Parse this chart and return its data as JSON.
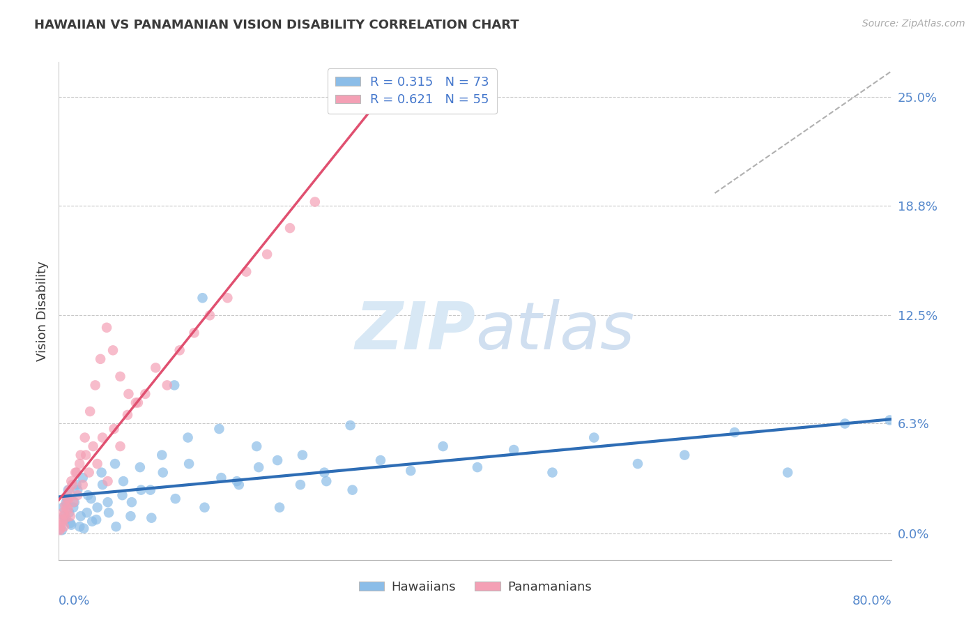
{
  "title": "HAWAIIAN VS PANAMANIAN VISION DISABILITY CORRELATION CHART",
  "source": "Source: ZipAtlas.com",
  "ylabel": "Vision Disability",
  "ytick_values": [
    0.0,
    6.3,
    12.5,
    18.8,
    25.0
  ],
  "xlim": [
    0.0,
    80.0
  ],
  "ylim": [
    -1.5,
    27.0
  ],
  "hawaiian_R": 0.315,
  "hawaiian_N": 73,
  "panamanian_R": 0.621,
  "panamanian_N": 55,
  "hawaiian_color": "#8bbde8",
  "panamanian_color": "#f4a0b5",
  "hawaiian_line_color": "#2e6db5",
  "panamanian_line_color": "#e05070",
  "watermark_zip_color": "#d8e8f5",
  "watermark_atlas_color": "#d0dff0",
  "background_color": "#ffffff",
  "grid_color": "#c8c8c8",
  "title_color": "#3a3a3a",
  "source_color": "#aaaaaa",
  "axis_label_color": "#5588cc",
  "legend_label_color": "#4477cc",
  "hawaiian_x": [
    0.4,
    0.6,
    0.8,
    1.0,
    1.2,
    1.5,
    1.8,
    2.1,
    2.4,
    2.8,
    3.2,
    3.7,
    4.2,
    4.8,
    5.5,
    6.2,
    7.0,
    7.9,
    8.9,
    10.0,
    11.2,
    12.5,
    14.0,
    15.6,
    17.3,
    19.2,
    21.2,
    23.4,
    25.7,
    28.2,
    30.9,
    33.8,
    36.9,
    40.2,
    43.7,
    47.4,
    51.4,
    55.6,
    60.1,
    64.9,
    70.0,
    75.5,
    79.8,
    0.3,
    0.5,
    0.7,
    0.9,
    1.1,
    1.4,
    1.7,
    2.0,
    2.3,
    2.7,
    3.1,
    3.6,
    4.1,
    4.7,
    5.4,
    6.1,
    6.9,
    7.8,
    8.8,
    9.9,
    11.1,
    12.4,
    13.8,
    15.4,
    17.1,
    19.0,
    21.0,
    23.2,
    25.5,
    28.0
  ],
  "hawaiian_y": [
    1.5,
    0.8,
    2.0,
    1.2,
    0.5,
    1.8,
    2.5,
    1.0,
    0.3,
    2.2,
    0.7,
    1.5,
    2.8,
    1.2,
    0.4,
    3.0,
    1.8,
    2.5,
    0.9,
    3.5,
    2.0,
    4.0,
    1.5,
    3.2,
    2.8,
    3.8,
    1.5,
    4.5,
    3.0,
    2.5,
    4.2,
    3.6,
    5.0,
    3.8,
    4.8,
    3.5,
    5.5,
    4.0,
    4.5,
    5.8,
    3.5,
    6.3,
    6.5,
    0.2,
    1.0,
    1.8,
    2.5,
    0.6,
    1.5,
    2.8,
    0.4,
    3.2,
    1.2,
    2.0,
    0.8,
    3.5,
    1.8,
    4.0,
    2.2,
    1.0,
    3.8,
    2.5,
    4.5,
    8.5,
    5.5,
    13.5,
    6.0,
    3.0,
    5.0,
    4.2,
    2.8,
    3.5,
    6.2
  ],
  "panamanian_x": [
    0.1,
    0.2,
    0.3,
    0.4,
    0.5,
    0.6,
    0.7,
    0.8,
    0.9,
    1.0,
    1.1,
    1.2,
    1.4,
    1.6,
    1.8,
    2.0,
    2.3,
    2.6,
    2.9,
    3.3,
    3.7,
    4.2,
    4.7,
    5.3,
    5.9,
    6.6,
    7.4,
    8.3,
    9.3,
    10.4,
    11.6,
    13.0,
    14.5,
    16.2,
    18.0,
    20.0,
    22.2,
    24.6,
    0.15,
    0.35,
    0.55,
    0.75,
    0.95,
    1.3,
    1.7,
    2.1,
    2.5,
    3.0,
    3.5,
    4.0,
    4.6,
    5.2,
    5.9,
    6.7,
    7.6
  ],
  "panamanian_y": [
    0.2,
    0.5,
    0.8,
    1.2,
    0.4,
    1.6,
    0.9,
    2.0,
    1.4,
    2.5,
    1.0,
    3.0,
    1.8,
    3.5,
    2.2,
    4.0,
    2.8,
    4.5,
    3.5,
    5.0,
    4.0,
    5.5,
    3.0,
    6.0,
    5.0,
    6.8,
    7.5,
    8.0,
    9.5,
    8.5,
    10.5,
    11.5,
    12.5,
    13.5,
    15.0,
    16.0,
    17.5,
    19.0,
    0.3,
    0.7,
    1.1,
    1.5,
    2.0,
    2.8,
    3.5,
    4.5,
    5.5,
    7.0,
    8.5,
    10.0,
    11.8,
    10.5,
    9.0,
    8.0,
    7.5
  ],
  "refline_x": [
    63,
    80
  ],
  "refline_y": [
    19.5,
    26.5
  ]
}
